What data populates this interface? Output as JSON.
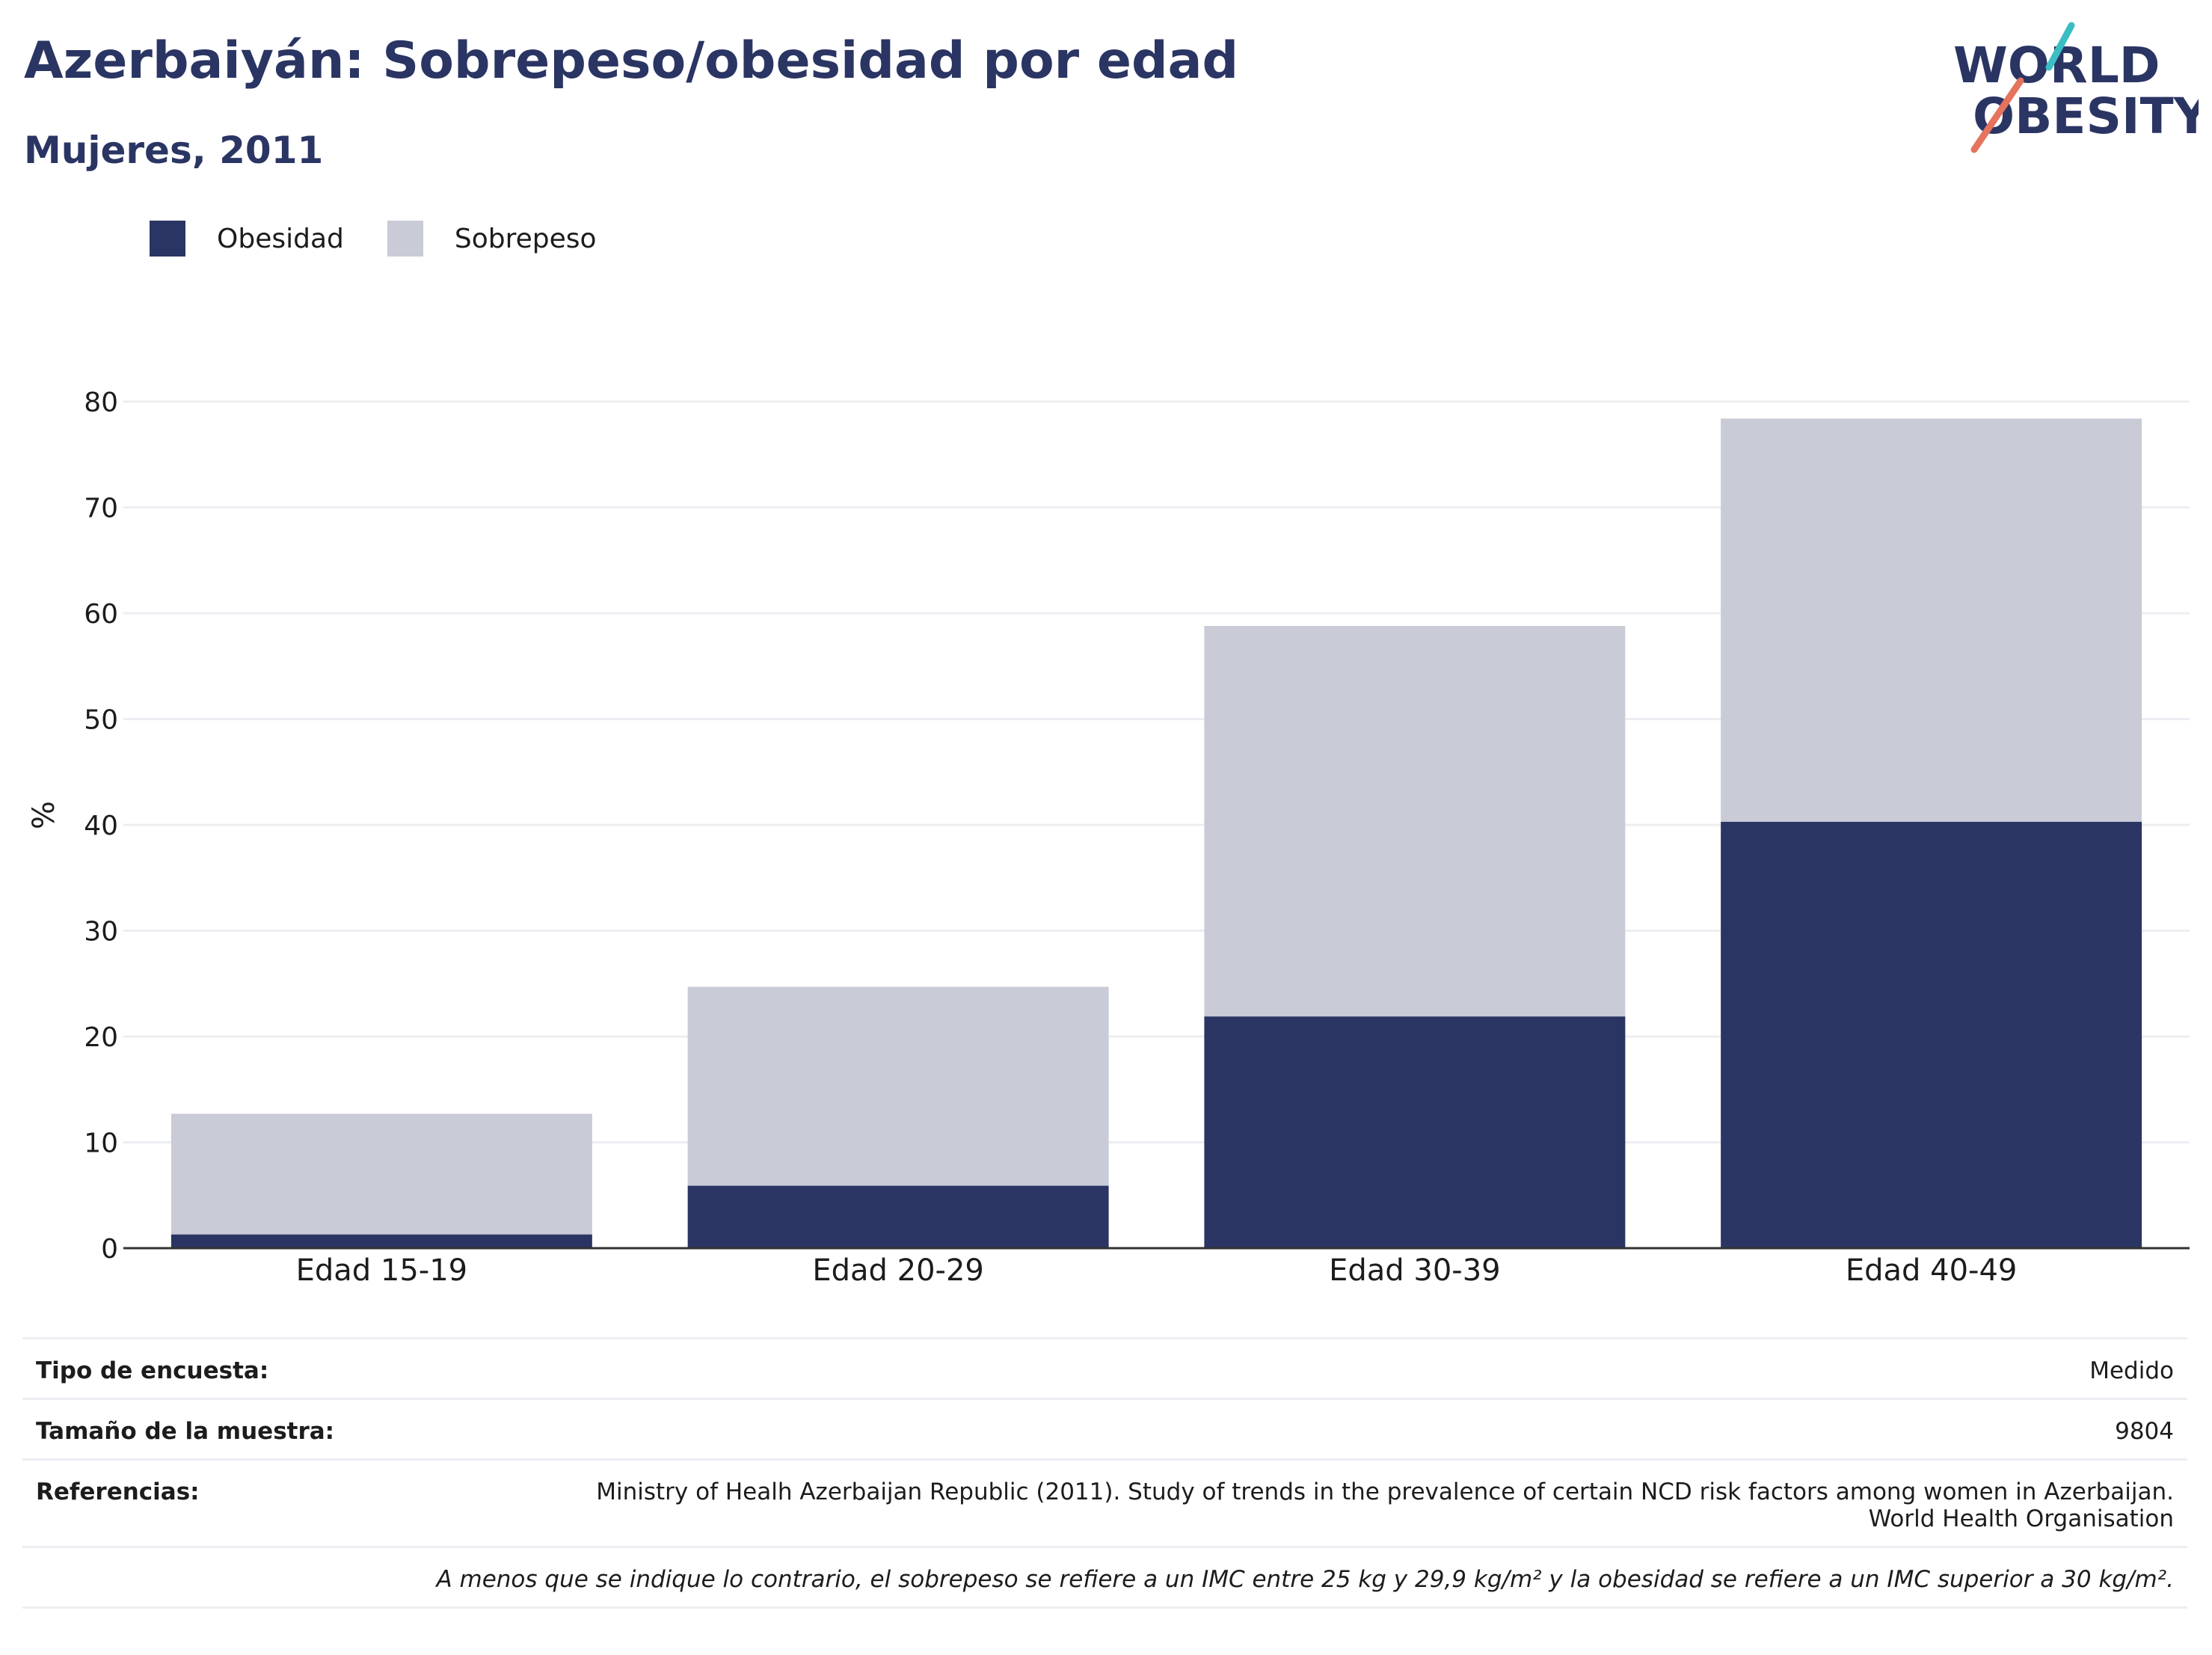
{
  "header": {
    "title": "Azerbaiyán: Sobrepeso/obesidad por edad",
    "subtitle": "Mujeres, 2011",
    "logo_line1": "WORLD",
    "logo_line2": "OBESITY"
  },
  "colors": {
    "obesity": "#2a3563",
    "overweight": "#c9cbd6",
    "axis": "#333333",
    "grid": "#eceef2",
    "logo_teal": "#3bbdc4",
    "logo_coral": "#e5735e"
  },
  "legend": {
    "items": [
      {
        "label": "Obesidad",
        "color": "#2a3563"
      },
      {
        "label": "Sobrepeso",
        "color": "#c9cbd6"
      }
    ]
  },
  "chart_data": {
    "type": "bar",
    "stacked": true,
    "title": "Azerbaiyán: Sobrepeso/obesidad por edad",
    "subtitle": "Mujeres, 2011",
    "xlabel": "",
    "ylabel": "%",
    "ylim": [
      0,
      80
    ],
    "yticks": [
      0,
      10,
      20,
      30,
      40,
      50,
      60,
      70,
      80
    ],
    "grid": true,
    "legend_position": "top-left",
    "categories": [
      "Edad 15-19",
      "Edad 20-29",
      "Edad 30-39",
      "Edad 40-49"
    ],
    "series": [
      {
        "name": "Obesidad",
        "values": [
          1.3,
          5.9,
          21.9,
          40.3
        ]
      },
      {
        "name": "Sobrepeso",
        "values": [
          11.4,
          18.8,
          36.9,
          38.1
        ]
      }
    ]
  },
  "info": {
    "survey_type_label": "Tipo de encuesta:",
    "survey_type_value": "Medido",
    "sample_size_label": "Tamaño de la muestra:",
    "sample_size_value": "9804",
    "references_label": "Referencias:",
    "references_line1": "Ministry of Healh Azerbaijan Republic (2011). Study of trends in the prevalence of certain NCD risk factors among women in Azerbaijan.",
    "references_line2": "World Health Organisation",
    "note": "A menos que se indique lo contrario, el sobrepeso se refiere a un IMC entre 25 kg y 29,9 kg/m² y la obesidad se refiere a un IMC superior a 30 kg/m²."
  }
}
